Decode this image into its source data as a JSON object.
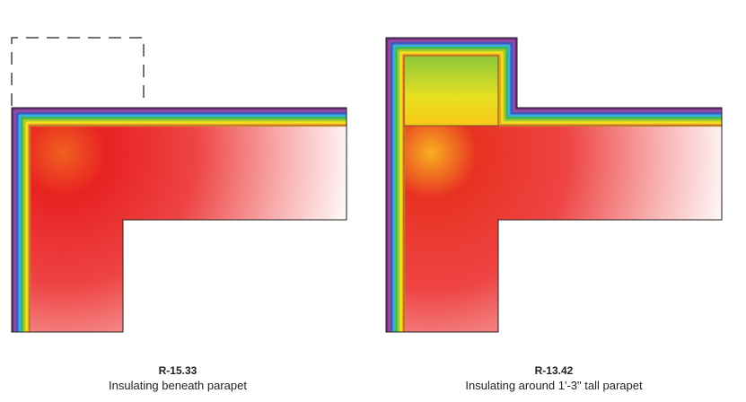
{
  "figures": [
    {
      "r_value": "R-15.33",
      "description": "Insulating beneath parapet"
    },
    {
      "r_value": "R-13.42",
      "description": "Insulating around 1'-3\" tall parapet"
    }
  ],
  "colors": {
    "band": [
      "#6a2f80",
      "#9a4aa2",
      "#4058c0",
      "#38b0e0",
      "#40b850",
      "#a0cc30",
      "#f0e020",
      "#f8a020"
    ],
    "warm": "#e82222",
    "outline": "#222222"
  }
}
